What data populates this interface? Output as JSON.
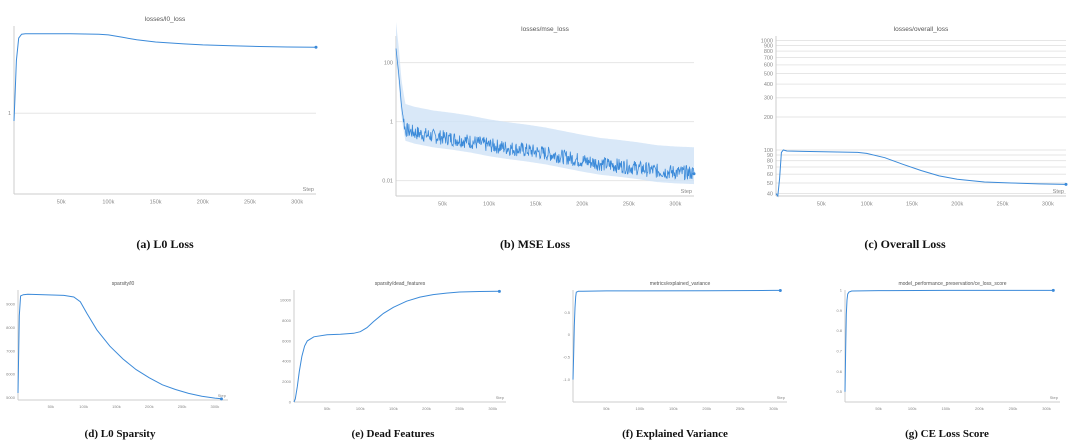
{
  "chart_data": [
    {
      "id": "a",
      "type": "line",
      "title": "losses/l0_loss",
      "caption": "(a) L0 Loss",
      "xlabel": "Step",
      "xlim": [
        0,
        320000
      ],
      "xticks": [
        50000,
        100000,
        150000,
        200000,
        250000,
        300000
      ],
      "xtick_labels": [
        "50k",
        "100k",
        "150k",
        "200k",
        "250k",
        "300k"
      ],
      "yscale": "log",
      "ylim": [
        0.1,
        12
      ],
      "yticks": [
        1
      ],
      "ytick_labels": [
        "1"
      ],
      "grid": true,
      "color": "#3b8ad9",
      "series": [
        {
          "x": [
            0,
            1000,
            2500,
            5000,
            8000,
            12000,
            30000,
            60000,
            90000,
            100000,
            115000,
            130000,
            150000,
            180000,
            200000,
            230000,
            260000,
            290000,
            320000
          ],
          "y": [
            0.8,
            1.5,
            4.5,
            8.5,
            9.5,
            9.6,
            9.6,
            9.6,
            9.5,
            9.3,
            8.7,
            8.1,
            7.6,
            7.2,
            7.0,
            6.85,
            6.7,
            6.6,
            6.55
          ]
        }
      ]
    },
    {
      "id": "b",
      "type": "line",
      "title": "losses/mse_loss",
      "caption": "(b) MSE Loss",
      "xlabel": "Step",
      "xlim": [
        0,
        320000
      ],
      "xticks": [
        50000,
        100000,
        150000,
        200000,
        250000,
        300000
      ],
      "xtick_labels": [
        "50k",
        "100k",
        "150k",
        "200k",
        "250k",
        "300k"
      ],
      "yscale": "log",
      "ylim": [
        0.003,
        800
      ],
      "yticks": [
        0.01,
        1,
        100
      ],
      "ytick_labels": [
        "0.01",
        "1",
        "100"
      ],
      "grid": true,
      "color": "#3b8ad9",
      "band_color": "#cfe2f6",
      "series": [
        {
          "x": [
            0,
            3000,
            6000,
            10000,
            20000,
            40000,
            60000,
            80000,
            100000,
            120000,
            140000,
            160000,
            180000,
            200000,
            220000,
            240000,
            260000,
            280000,
            300000,
            320000
          ],
          "y": [
            300,
            40,
            3,
            0.5,
            0.4,
            0.3,
            0.25,
            0.2,
            0.15,
            0.12,
            0.1,
            0.08,
            0.06,
            0.045,
            0.035,
            0.03,
            0.025,
            0.02,
            0.018,
            0.017
          ]
        }
      ]
    },
    {
      "id": "c",
      "type": "line",
      "title": "losses/overall_loss",
      "caption": "(c) Overall Loss",
      "xlabel": "Step",
      "xlim": [
        0,
        320000
      ],
      "xticks": [
        50000,
        100000,
        150000,
        200000,
        250000,
        300000
      ],
      "xtick_labels": [
        "50k",
        "100k",
        "150k",
        "200k",
        "250k",
        "300k"
      ],
      "yscale": "log",
      "ylim": [
        38,
        1100
      ],
      "yticks": [
        40,
        50,
        60,
        70,
        80,
        90,
        100,
        200,
        300,
        400,
        500,
        600,
        700,
        800,
        900,
        1000
      ],
      "ytick_labels": [
        "40",
        "50",
        "60",
        "70",
        "80",
        "90",
        "100",
        "200",
        "300",
        "400",
        "500",
        "600",
        "700",
        "800",
        "900",
        "1000"
      ],
      "grid": true,
      "color": "#3b8ad9",
      "series": [
        {
          "x": [
            0,
            2000,
            4000,
            6000,
            8000,
            12000,
            30000,
            60000,
            90000,
            100000,
            120000,
            140000,
            160000,
            180000,
            200000,
            230000,
            260000,
            290000,
            320000
          ],
          "y": [
            40,
            38,
            55,
            95,
            100,
            98,
            97,
            96,
            95,
            93,
            85,
            74,
            65,
            58,
            54,
            51,
            50,
            49,
            48.5
          ]
        }
      ]
    },
    {
      "id": "d",
      "type": "line",
      "title": "sparsity/l0",
      "caption": "(d) L0 Sparsity",
      "xlabel": "Step",
      "xlim": [
        0,
        320000
      ],
      "xticks": [
        50000,
        100000,
        150000,
        200000,
        250000,
        300000
      ],
      "xtick_labels": [
        "50k",
        "100k",
        "150k",
        "200k",
        "250k",
        "300k"
      ],
      "yscale": "linear",
      "ylim": [
        4900,
        9600
      ],
      "yticks": [
        5000,
        6000,
        7000,
        8000,
        9000
      ],
      "ytick_labels": [
        "5000",
        "6000",
        "7000",
        "8000",
        "9000"
      ],
      "grid": false,
      "color": "#3b8ad9",
      "series": [
        {
          "x": [
            0,
            2000,
            4000,
            8000,
            15000,
            40000,
            70000,
            85000,
            95000,
            105000,
            120000,
            140000,
            160000,
            180000,
            200000,
            220000,
            240000,
            260000,
            280000,
            300000,
            310000
          ],
          "y": [
            5200,
            8500,
            9350,
            9400,
            9420,
            9400,
            9370,
            9300,
            9100,
            8600,
            7900,
            7200,
            6650,
            6200,
            5850,
            5550,
            5350,
            5180,
            5060,
            4980,
            4950
          ]
        }
      ]
    },
    {
      "id": "e",
      "type": "line",
      "title": "sparsity/dead_features",
      "caption": "(e) Dead Features",
      "xlabel": "Step",
      "xlim": [
        0,
        320000
      ],
      "xticks": [
        50000,
        100000,
        150000,
        200000,
        250000,
        300000
      ],
      "xtick_labels": [
        "50k",
        "100k",
        "150k",
        "200k",
        "250k",
        "300k"
      ],
      "yscale": "linear",
      "ylim": [
        0,
        11000
      ],
      "yticks": [
        0,
        2000,
        4000,
        6000,
        8000,
        10000
      ],
      "ytick_labels": [
        "0",
        "2000",
        "4000",
        "6000",
        "8000",
        "10000"
      ],
      "grid": false,
      "color": "#3b8ad9",
      "series": [
        {
          "x": [
            0,
            2000,
            5000,
            8000,
            12000,
            16000,
            20000,
            30000,
            50000,
            70000,
            90000,
            100000,
            110000,
            120000,
            135000,
            150000,
            170000,
            190000,
            210000,
            230000,
            250000,
            280000,
            310000
          ],
          "y": [
            0,
            300,
            1500,
            3000,
            4500,
            5500,
            6000,
            6400,
            6600,
            6650,
            6750,
            6900,
            7300,
            7900,
            8700,
            9300,
            9900,
            10300,
            10550,
            10700,
            10800,
            10850,
            10870
          ]
        }
      ]
    },
    {
      "id": "f",
      "type": "line",
      "title": "metrics/explained_variance",
      "caption": "(f) Explained Variance",
      "xlabel": "Step",
      "xlim": [
        0,
        320000
      ],
      "xticks": [
        50000,
        100000,
        150000,
        200000,
        250000,
        300000
      ],
      "xtick_labels": [
        "50k",
        "100k",
        "150k",
        "200k",
        "250k",
        "300k"
      ],
      "yscale": "linear",
      "ylim": [
        -1.5,
        1
      ],
      "yticks": [
        0.5,
        0,
        -0.5,
        -1
      ],
      "ytick_labels": [
        "0.5",
        "0",
        "-0.5",
        "-1.0"
      ],
      "grid": false,
      "color": "#3b8ad9",
      "series": [
        {
          "x": [
            0,
            1000,
            2000,
            3000,
            4000,
            5000,
            8000,
            15000,
            50000,
            100000,
            200000,
            300000,
            310000
          ],
          "y": [
            -1.0,
            -0.4,
            0.2,
            0.6,
            0.85,
            0.95,
            0.97,
            0.97,
            0.98,
            0.98,
            0.985,
            0.99,
            0.99
          ]
        }
      ]
    },
    {
      "id": "g",
      "type": "line",
      "title": "model_performance_preservation/ce_loss_score",
      "caption": "(g) CE Loss Score",
      "xlabel": "Step",
      "xlim": [
        0,
        320000
      ],
      "xticks": [
        50000,
        100000,
        150000,
        200000,
        250000,
        300000
      ],
      "xtick_labels": [
        "50k",
        "100k",
        "150k",
        "200k",
        "250k",
        "300k"
      ],
      "yscale": "linear",
      "ylim": [
        0.45,
        1.0
      ],
      "yticks": [
        1,
        0.9,
        0.8,
        0.7,
        0.6,
        0.5
      ],
      "ytick_labels": [
        "1",
        "0.9",
        "0.8",
        "0.7",
        "0.6",
        "0.5"
      ],
      "grid": false,
      "color": "#3b8ad9",
      "series": [
        {
          "x": [
            0,
            1000,
            2000,
            3000,
            4000,
            6000,
            10000,
            50000,
            150000,
            250000,
            310000
          ],
          "y": [
            0.5,
            0.72,
            0.88,
            0.95,
            0.98,
            0.99,
            0.995,
            0.997,
            0.998,
            0.998,
            0.998
          ]
        }
      ]
    }
  ]
}
